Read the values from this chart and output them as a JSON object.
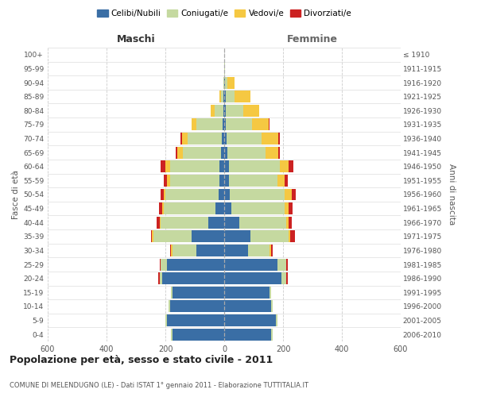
{
  "age_groups": [
    "0-4",
    "5-9",
    "10-14",
    "15-19",
    "20-24",
    "25-29",
    "30-34",
    "35-39",
    "40-44",
    "45-49",
    "50-54",
    "55-59",
    "60-64",
    "65-69",
    "70-74",
    "75-79",
    "80-84",
    "85-89",
    "90-94",
    "95-99",
    "100+"
  ],
  "birth_years": [
    "2006-2010",
    "2001-2005",
    "1996-2000",
    "1991-1995",
    "1986-1990",
    "1981-1985",
    "1976-1980",
    "1971-1975",
    "1966-1970",
    "1961-1965",
    "1956-1960",
    "1951-1955",
    "1946-1950",
    "1941-1945",
    "1936-1940",
    "1931-1935",
    "1926-1930",
    "1921-1925",
    "1916-1920",
    "1911-1915",
    "≤ 1910"
  ],
  "male": {
    "celibi": [
      175,
      195,
      185,
      175,
      210,
      195,
      95,
      110,
      55,
      30,
      20,
      15,
      15,
      10,
      8,
      5,
      2,
      2,
      0,
      0,
      0
    ],
    "coniugati": [
      5,
      5,
      5,
      5,
      10,
      20,
      80,
      130,
      160,
      175,
      180,
      170,
      170,
      130,
      115,
      90,
      30,
      8,
      2,
      0,
      0
    ],
    "vedovi": [
      0,
      0,
      0,
      0,
      0,
      0,
      5,
      5,
      5,
      5,
      5,
      10,
      15,
      20,
      20,
      15,
      15,
      5,
      0,
      0,
      0
    ],
    "divorziati": [
      0,
      0,
      0,
      0,
      5,
      5,
      5,
      5,
      10,
      12,
      12,
      10,
      15,
      5,
      5,
      0,
      0,
      0,
      0,
      0,
      0
    ]
  },
  "female": {
    "nubili": [
      160,
      175,
      160,
      155,
      195,
      180,
      80,
      90,
      50,
      25,
      20,
      15,
      15,
      10,
      8,
      5,
      5,
      5,
      2,
      0,
      0
    ],
    "coniugate": [
      5,
      5,
      5,
      5,
      15,
      30,
      75,
      130,
      160,
      180,
      185,
      165,
      175,
      130,
      120,
      90,
      60,
      30,
      8,
      2,
      0
    ],
    "vedove": [
      0,
      0,
      0,
      0,
      0,
      0,
      5,
      5,
      10,
      15,
      25,
      25,
      30,
      45,
      55,
      55,
      55,
      55,
      25,
      2,
      0
    ],
    "divorziate": [
      0,
      0,
      0,
      0,
      5,
      5,
      5,
      15,
      10,
      12,
      12,
      10,
      15,
      5,
      5,
      5,
      0,
      0,
      0,
      0,
      0
    ]
  },
  "colors": {
    "celibi": "#3a6ea5",
    "coniugati": "#c5d9a0",
    "vedovi": "#f5c842",
    "divorziati": "#cc2222"
  },
  "legend_labels": [
    "Celibi/Nubili",
    "Coniugati/e",
    "Vedovi/e",
    "Divorziati/e"
  ],
  "legend_colors": [
    "#3a6ea5",
    "#c5d9a0",
    "#f5c842",
    "#cc2222"
  ],
  "title": "Popolazione per età, sesso e stato civile - 2011",
  "subtitle": "COMUNE DI MELENDUGNO (LE) - Dati ISTAT 1° gennaio 2011 - Elaborazione TUTTITALIA.IT",
  "ylabel_left": "Fasce di età",
  "ylabel_right": "Anni di nascita",
  "xlabel_left": "Maschi",
  "xlabel_right": "Femmine",
  "xlim": 600,
  "bg_color": "#ffffff",
  "grid_color": "#cccccc"
}
